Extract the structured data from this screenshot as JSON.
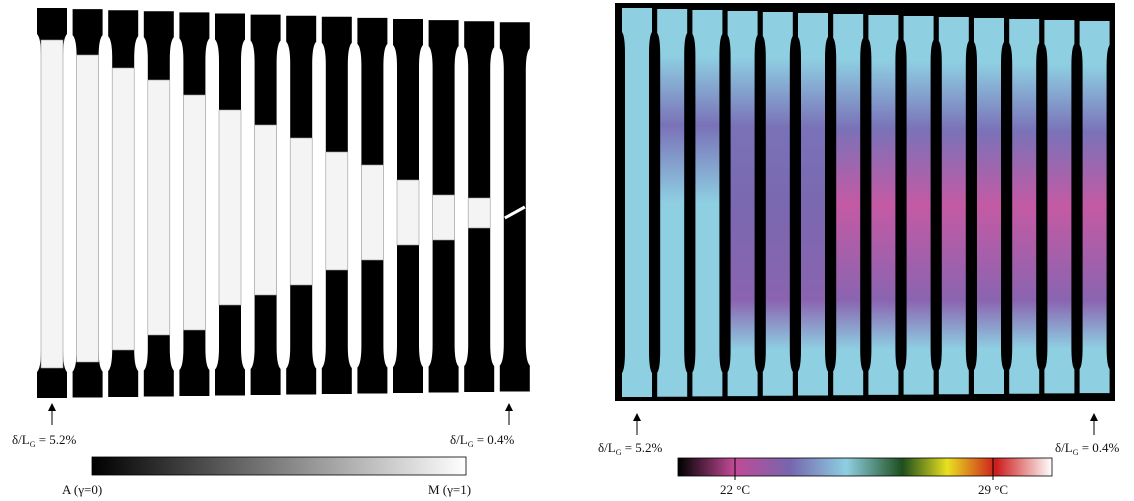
{
  "left_panel": {
    "start_label": {
      "prefix": "δ/L",
      "subscript": "G",
      "suffix": " = 5.2%"
    },
    "end_label": {
      "prefix": "δ/L",
      "subscript": "G",
      "suffix": " = 0.4%"
    },
    "colorbar": {
      "min_label": "A (γ=0)",
      "max_label": "M (γ=1)"
    }
  },
  "right_panel": {
    "start_label": {
      "prefix": "δ/L",
      "subscript": "G",
      "suffix": " = 5.2%"
    },
    "end_label": {
      "prefix": "δ/L",
      "subscript": "G",
      "suffix": " = 0.4%"
    },
    "colorbar": {
      "tick_labels": [
        "22 °C",
        "29 °C"
      ]
    }
  }
}
